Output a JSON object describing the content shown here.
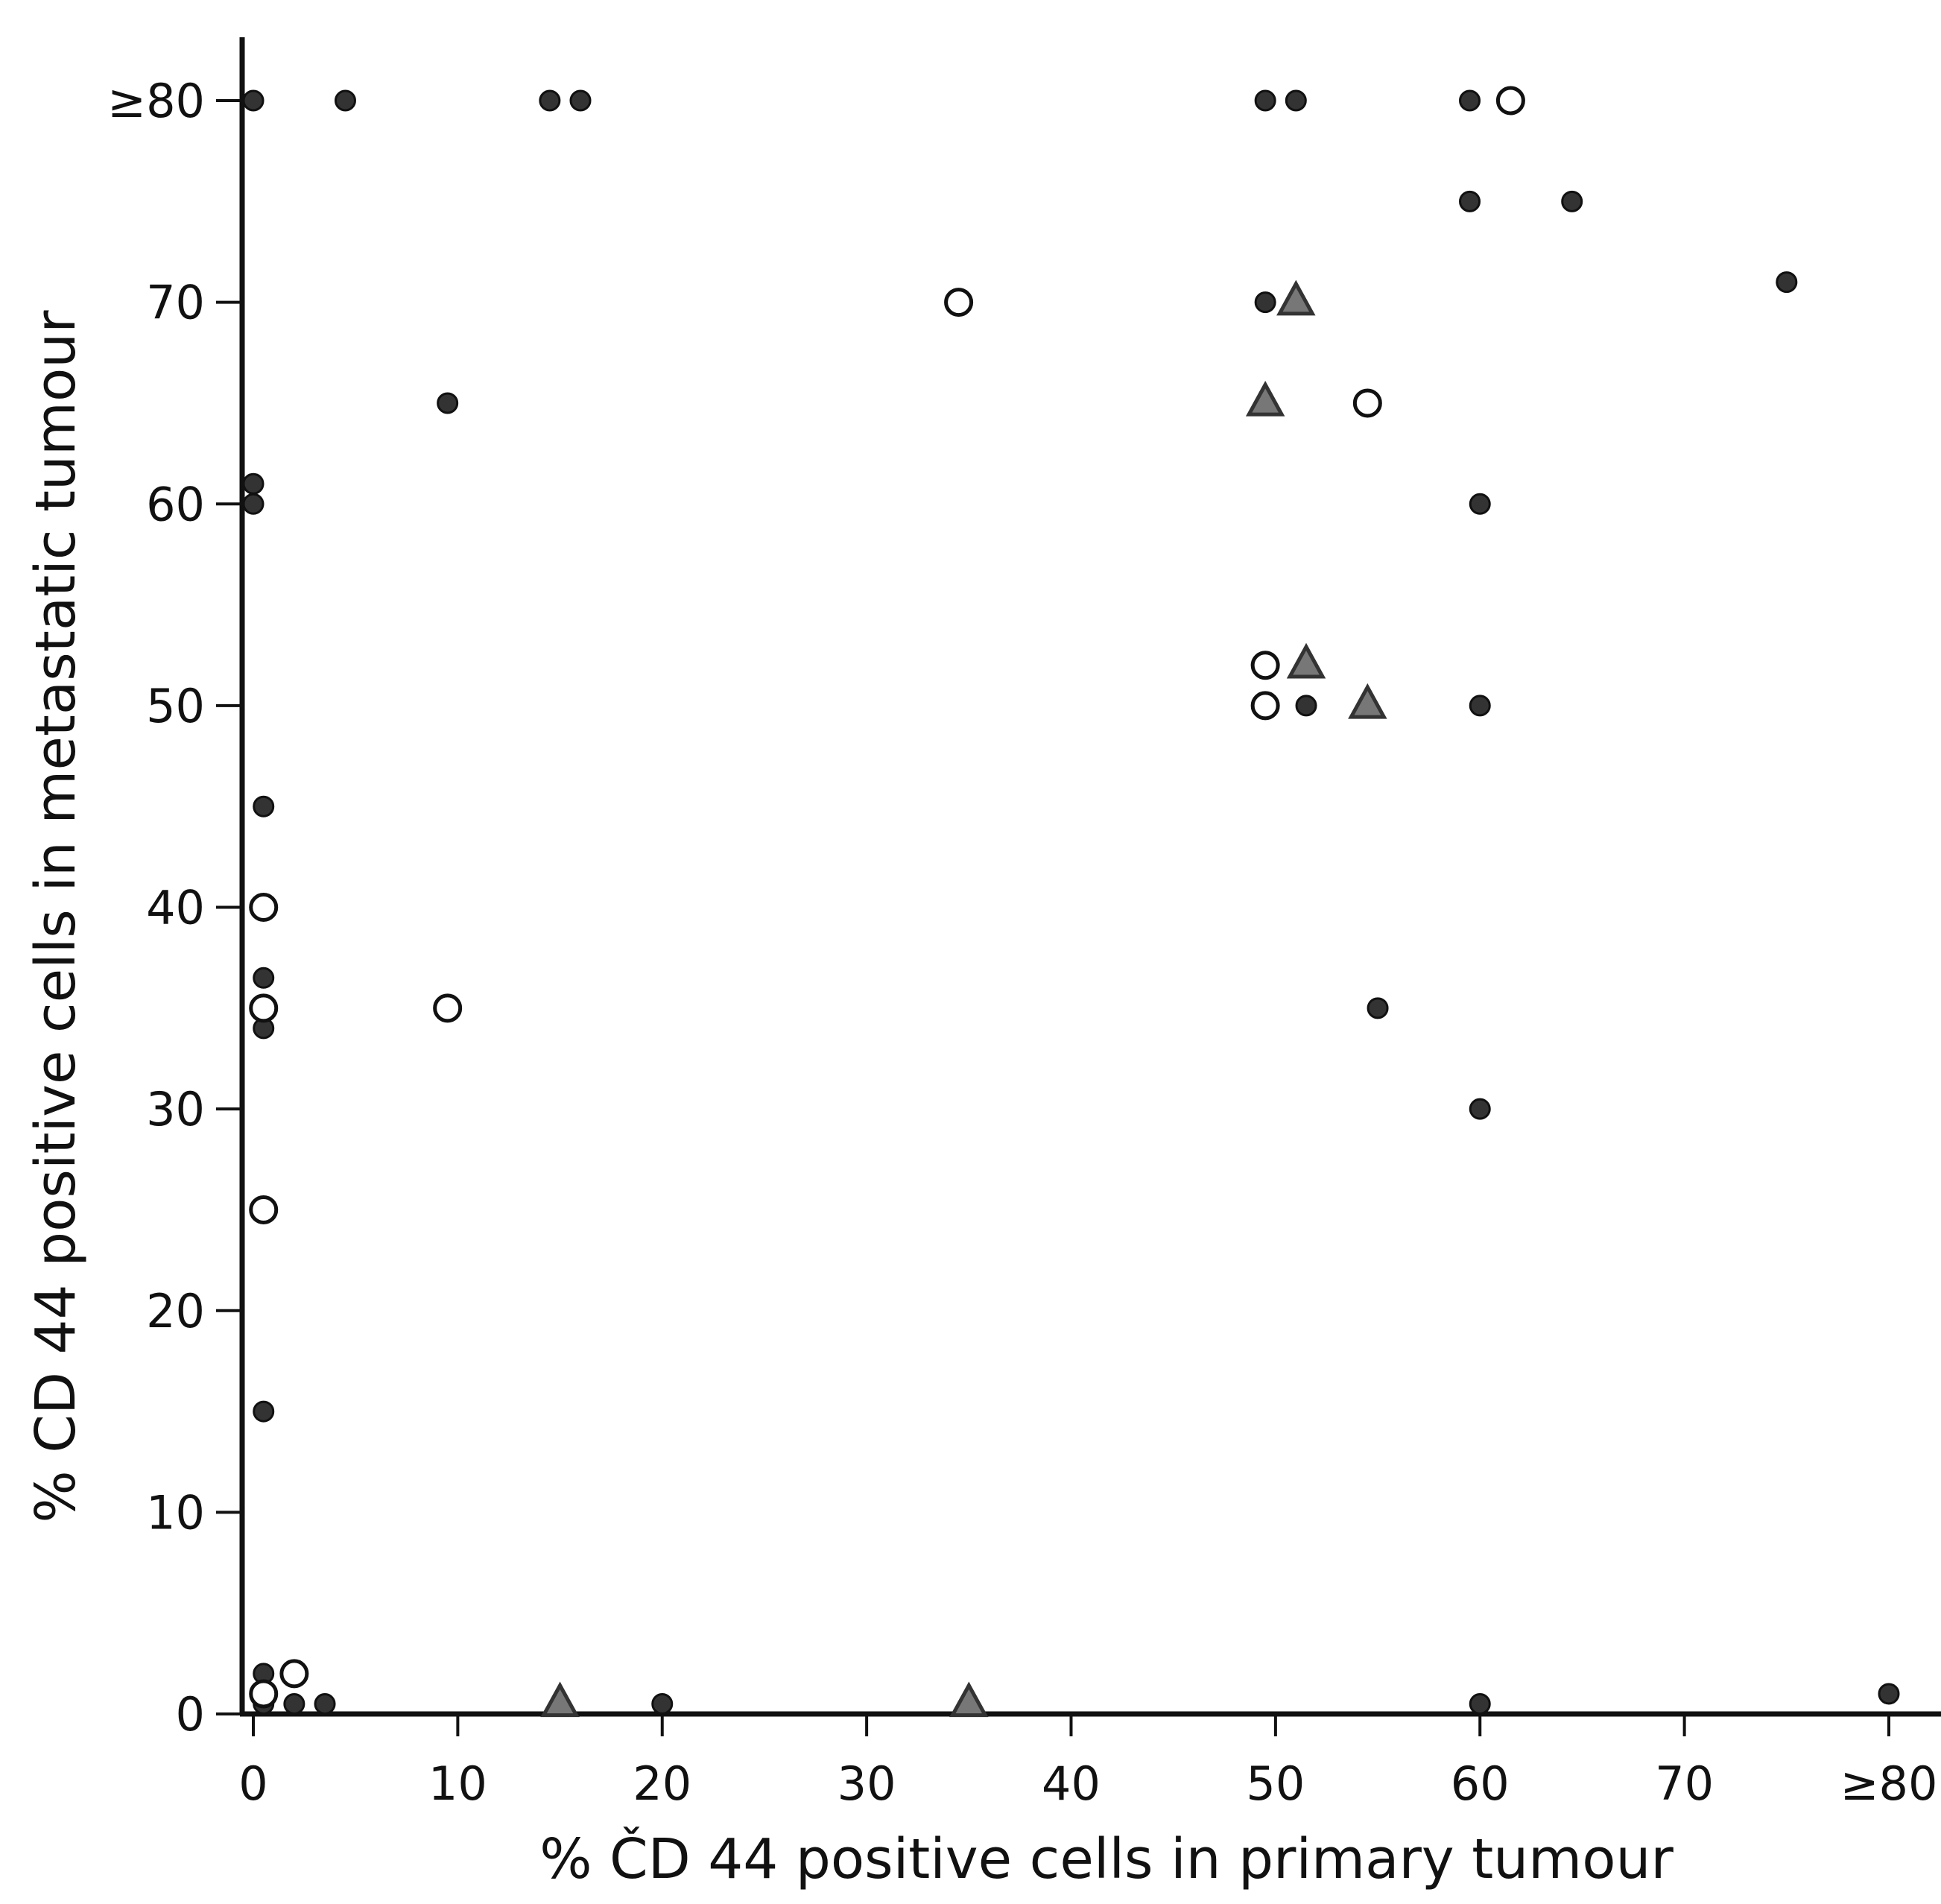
{
  "chart_data": {
    "type": "scatter",
    "title": "",
    "xlabel": "% ČD 44 positive cells in primary  tumour",
    "ylabel": "% CD 44 positive cells in metastatic tumour",
    "xlim": [
      0,
      80
    ],
    "ylim": [
      0,
      80
    ],
    "x_ticks": [
      0,
      10,
      20,
      30,
      40,
      50,
      60,
      70,
      80
    ],
    "x_tick_labels": [
      "0",
      "10",
      "20",
      "30",
      "40",
      "50",
      "60",
      "70",
      "≥80"
    ],
    "y_ticks": [
      0,
      10,
      20,
      30,
      40,
      50,
      60,
      70,
      80
    ],
    "y_tick_labels": [
      "0",
      "10",
      "20",
      "30",
      "40",
      "50",
      "60",
      "70",
      "≥80"
    ],
    "grid": false,
    "legend": "none",
    "series": [
      {
        "marker": "filled-circle",
        "color": "#333333",
        "points": [
          [
            0,
            80
          ],
          [
            4.5,
            80
          ],
          [
            14.5,
            80
          ],
          [
            16,
            80
          ],
          [
            49.5,
            80
          ],
          [
            51,
            80
          ],
          [
            59.5,
            80
          ],
          [
            59.5,
            75
          ],
          [
            64.5,
            75
          ],
          [
            75,
            71
          ],
          [
            49.5,
            70
          ],
          [
            9.5,
            65
          ],
          [
            0,
            61
          ],
          [
            0,
            60
          ],
          [
            60,
            60
          ],
          [
            51.5,
            50
          ],
          [
            60,
            50
          ],
          [
            0.5,
            45
          ],
          [
            0.5,
            36.5
          ],
          [
            0.5,
            34
          ],
          [
            55,
            35
          ],
          [
            60,
            30
          ],
          [
            0.5,
            15
          ],
          [
            0.5,
            2
          ],
          [
            0.5,
            0.5
          ],
          [
            2,
            0.5
          ],
          [
            3.5,
            0.5
          ],
          [
            20,
            0.5
          ],
          [
            60,
            0.5
          ],
          [
            80,
            1
          ]
        ]
      },
      {
        "marker": "open-circle",
        "color": "#111111",
        "points": [
          [
            61.5,
            80
          ],
          [
            34.5,
            70
          ],
          [
            54.5,
            65
          ],
          [
            49.5,
            52
          ],
          [
            49.5,
            50
          ],
          [
            0.5,
            40
          ],
          [
            9.5,
            35
          ],
          [
            0.5,
            35
          ],
          [
            0.5,
            25
          ],
          [
            2,
            2
          ],
          [
            0.5,
            1
          ]
        ]
      },
      {
        "marker": "triangle",
        "color": "#333333",
        "points": [
          [
            51,
            70
          ],
          [
            49.5,
            65
          ],
          [
            51.5,
            52
          ],
          [
            54.5,
            50
          ],
          [
            15,
            0.5
          ],
          [
            35,
            0.5
          ]
        ]
      }
    ]
  }
}
